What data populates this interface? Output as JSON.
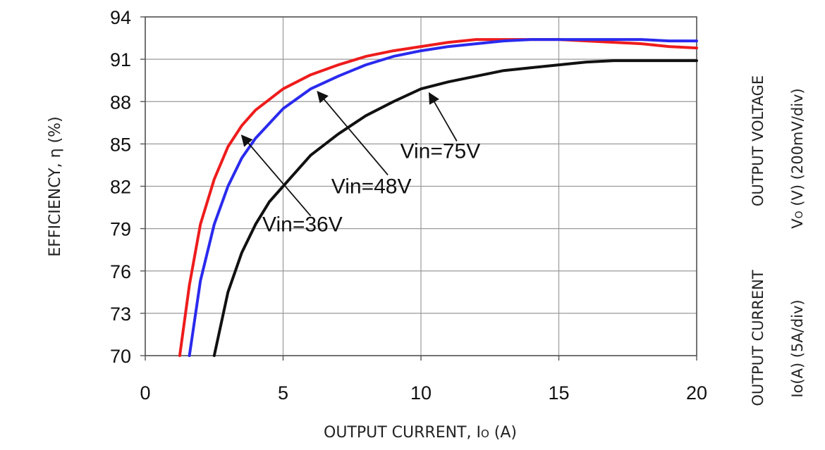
{
  "chart_data": {
    "type": "line",
    "xlabel": "OUTPUT CURRENT, I",
    "xlabel_sub": "O",
    "xlabel_unit": " (A)",
    "ylabel": "EFFICIENCY, η  (%)",
    "xlim": [
      0,
      20
    ],
    "ylim": [
      70,
      94
    ],
    "xticks": [
      0,
      5,
      10,
      15,
      20
    ],
    "yticks": [
      70,
      73,
      76,
      79,
      82,
      85,
      88,
      91,
      94
    ],
    "grid": true,
    "series": [
      {
        "name": "Vin=36V",
        "color": "#ee1c1c",
        "x": [
          1.25,
          1.6,
          2.0,
          2.5,
          3.0,
          3.5,
          4.0,
          5.0,
          6.0,
          7.0,
          8.0,
          9.0,
          10.0,
          11.0,
          12.0,
          13.0,
          14.0,
          15.0,
          16.0,
          17.0,
          18.0,
          19.0,
          20.0
        ],
        "y": [
          70.0,
          75.0,
          79.3,
          82.5,
          84.8,
          86.3,
          87.4,
          88.9,
          89.9,
          90.6,
          91.2,
          91.6,
          91.9,
          92.2,
          92.4,
          92.4,
          92.4,
          92.4,
          92.3,
          92.2,
          92.1,
          91.9,
          91.8
        ]
      },
      {
        "name": "Vin=48V",
        "color": "#2a2aee",
        "x": [
          1.6,
          2.0,
          2.5,
          3.0,
          3.5,
          4.0,
          5.0,
          6.0,
          7.0,
          8.0,
          9.0,
          10.0,
          11.0,
          12.0,
          13.0,
          14.0,
          15.0,
          16.0,
          17.0,
          18.0,
          19.0,
          20.0
        ],
        "y": [
          70.0,
          75.3,
          79.3,
          82.0,
          84.0,
          85.4,
          87.5,
          88.9,
          89.8,
          90.6,
          91.2,
          91.6,
          91.9,
          92.1,
          92.3,
          92.4,
          92.4,
          92.4,
          92.4,
          92.4,
          92.3,
          92.3
        ]
      },
      {
        "name": "Vin=75V",
        "color": "#111111",
        "x": [
          2.5,
          3.0,
          3.5,
          4.0,
          4.5,
          5.0,
          6.0,
          7.0,
          8.0,
          9.0,
          10.0,
          11.0,
          12.0,
          13.0,
          14.0,
          15.0,
          16.0,
          17.0,
          18.0,
          19.0,
          20.0
        ],
        "y": [
          70.0,
          74.5,
          77.3,
          79.3,
          80.9,
          82.0,
          84.2,
          85.7,
          87.0,
          88.0,
          88.9,
          89.4,
          89.8,
          90.2,
          90.4,
          90.6,
          90.8,
          90.9,
          90.9,
          90.9,
          90.9
        ]
      }
    ],
    "annotations": [
      {
        "text": "Vin=36V",
        "text_at": [
          5.7,
          78.8
        ],
        "arrow_from": [
          6.0,
          79.9
        ],
        "arrow_to": [
          3.5,
          85.6
        ]
      },
      {
        "text": "Vin=48V",
        "text_at": [
          8.2,
          81.5
        ],
        "arrow_from": [
          8.8,
          82.8
        ],
        "arrow_to": [
          6.25,
          88.7
        ]
      },
      {
        "text": "Vin=75V",
        "text_at": [
          10.7,
          84.0
        ],
        "arrow_from": [
          11.3,
          85.2
        ],
        "arrow_to": [
          10.3,
          88.6
        ]
      }
    ]
  },
  "side_labels": {
    "output_voltage": "OUTPUT VOLTAGE",
    "vo_prefix": "V",
    "vo_sub": "O",
    "vo_suffix": " (V) (200mV/div)",
    "output_current": "OUTPUT CURRENT",
    "io_div": "Io(A) (5A/div)"
  }
}
